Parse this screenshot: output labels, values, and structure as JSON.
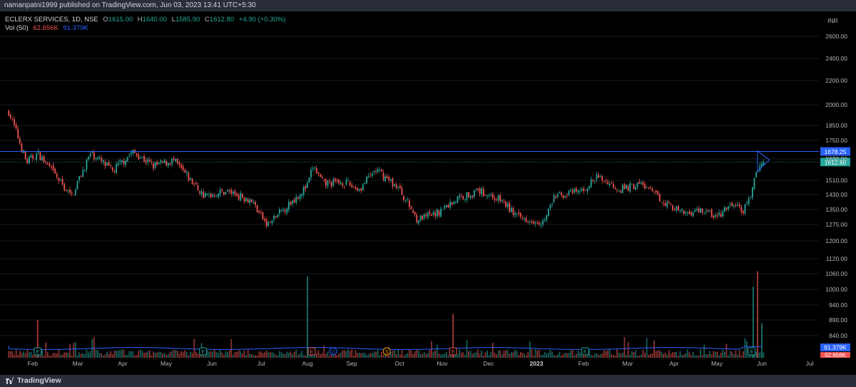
{
  "header": {
    "publisher": "namanpatni1999 published on TradingView.com, Jun 03, 2023 13:41 UTC+5:30"
  },
  "legend": {
    "symbol": "ECLERX SERVICES, 1D, NSE",
    "o_label": "O",
    "o": "1615.00",
    "h_label": "H",
    "h": "1640.00",
    "l_label": "L",
    "l": "1585.90",
    "c_label": "C",
    "c": "1612.80",
    "change": "+4.90 (+0.30%)",
    "vol_label": "Vol (50)",
    "vol": "62.656K",
    "vol_ma": "91.379K"
  },
  "footer": {
    "brand": "TradingView"
  },
  "colors": {
    "up": "#26a69a",
    "down": "#ef5350",
    "accent": "#2962ff",
    "volume_ma": "#2962ff",
    "background": "#000000"
  },
  "chart_data": {
    "type": "candlestick",
    "currency": "INR",
    "price_ticks": [
      2600,
      2400,
      2200,
      2000,
      1850,
      1750,
      1630,
      1510,
      1430,
      1350,
      1275,
      1200,
      1120,
      1060,
      1000,
      940,
      890,
      840
    ],
    "price_tick_labels": [
      "2600.00",
      "2400.00",
      "2200.00",
      "2000.00",
      "1850.00",
      "1750.00",
      "1630.00",
      "1510.00",
      "1430.00",
      "1350.00",
      "1275.00",
      "1200.00",
      "1120.00",
      "1060.00",
      "1000.00",
      "940.00",
      "890.00",
      "840.00"
    ],
    "x_labels": [
      "Feb",
      "Mar",
      "Apr",
      "May",
      "Jun",
      "Jul",
      "Aug",
      "Sep",
      "Oct",
      "Nov",
      "Dec",
      "2023",
      "Feb",
      "Mar",
      "Apr",
      "May",
      "Jun",
      "Jul"
    ],
    "x_label_dates": [
      "2022-02-01",
      "2022-03-01",
      "2022-04-01",
      "2022-05-01",
      "2022-06-01",
      "2022-07-01",
      "2022-08-01",
      "2022-09-01",
      "2022-10-01",
      "2022-11-01",
      "2022-12-01",
      "2023-01-01",
      "2023-02-01",
      "2023-03-01",
      "2023-04-01",
      "2023-05-01",
      "2023-06-01",
      "2023-07-01"
    ],
    "ohlc_estimated_path": [
      {
        "date": "2022-01-17",
        "close": 1950
      },
      {
        "date": "2022-01-28",
        "close": 1610
      },
      {
        "date": "2022-02-04",
        "close": 1665
      },
      {
        "date": "2022-02-25",
        "close": 1420
      },
      {
        "date": "2022-03-10",
        "close": 1665
      },
      {
        "date": "2022-03-25",
        "close": 1560
      },
      {
        "date": "2022-04-08",
        "close": 1675
      },
      {
        "date": "2022-04-22",
        "close": 1590
      },
      {
        "date": "2022-05-06",
        "close": 1620
      },
      {
        "date": "2022-05-27",
        "close": 1420
      },
      {
        "date": "2022-06-10",
        "close": 1450
      },
      {
        "date": "2022-06-25",
        "close": 1400
      },
      {
        "date": "2022-07-05",
        "close": 1270
      },
      {
        "date": "2022-07-20",
        "close": 1380
      },
      {
        "date": "2022-08-01",
        "close": 1480
      },
      {
        "date": "2022-08-05",
        "close": 1590
      },
      {
        "date": "2022-08-12",
        "close": 1490
      },
      {
        "date": "2022-08-26",
        "close": 1500
      },
      {
        "date": "2022-09-06",
        "close": 1460
      },
      {
        "date": "2022-09-16",
        "close": 1570
      },
      {
        "date": "2022-09-30",
        "close": 1470
      },
      {
        "date": "2022-10-14",
        "close": 1300
      },
      {
        "date": "2022-10-28",
        "close": 1330
      },
      {
        "date": "2022-11-11",
        "close": 1410
      },
      {
        "date": "2022-11-25",
        "close": 1450
      },
      {
        "date": "2022-12-09",
        "close": 1400
      },
      {
        "date": "2022-12-20",
        "close": 1310
      },
      {
        "date": "2023-01-06",
        "close": 1290
      },
      {
        "date": "2023-01-13",
        "close": 1420
      },
      {
        "date": "2023-01-31",
        "close": 1450
      },
      {
        "date": "2023-02-10",
        "close": 1530
      },
      {
        "date": "2023-02-24",
        "close": 1460
      },
      {
        "date": "2023-03-10",
        "close": 1490
      },
      {
        "date": "2023-03-24",
        "close": 1400
      },
      {
        "date": "2023-04-07",
        "close": 1330
      },
      {
        "date": "2023-04-21",
        "close": 1350
      },
      {
        "date": "2023-05-01",
        "close": 1310
      },
      {
        "date": "2023-05-12",
        "close": 1380
      },
      {
        "date": "2023-05-19",
        "close": 1340
      },
      {
        "date": "2023-05-25",
        "close": 1440
      },
      {
        "date": "2023-05-29",
        "close": 1580
      },
      {
        "date": "2023-06-02",
        "close": 1612.8
      }
    ],
    "volume_markers_estimated": [
      {
        "date": "2022-02-04",
        "value": 890
      },
      {
        "date": "2022-08-01",
        "value": 1050
      },
      {
        "date": "2022-11-08",
        "value": 910
      },
      {
        "date": "2023-05-26",
        "value": 1010
      },
      {
        "date": "2023-05-29",
        "value": 1070
      },
      {
        "date": "2023-06-01",
        "value": 880
      }
    ],
    "hline": {
      "value": 1678.25,
      "label": "1678.25"
    },
    "last_price": {
      "value": 1612.8,
      "label": "1612.80"
    },
    "last_price_hidden_label": "1630.00",
    "volume_ma_label": "91.379K",
    "volume_label": "62.656K",
    "event_markers": [
      {
        "letter": "E",
        "date": "2022-02-04",
        "kind": "earnings"
      },
      {
        "letter": "E",
        "date": "2022-05-26",
        "kind": "earnings"
      },
      {
        "letter": "E",
        "date": "2022-08-04",
        "kind": "earnings-neg"
      },
      {
        "letter": "D",
        "date": "2022-08-19",
        "kind": "dividend"
      },
      {
        "letter": "S",
        "date": "2022-09-23",
        "kind": "split"
      },
      {
        "letter": "E",
        "date": "2022-11-08",
        "kind": "earnings-neg"
      },
      {
        "letter": "E",
        "date": "2023-02-02",
        "kind": "earnings"
      },
      {
        "letter": "E",
        "date": "2023-05-25",
        "kind": "earnings"
      }
    ]
  }
}
